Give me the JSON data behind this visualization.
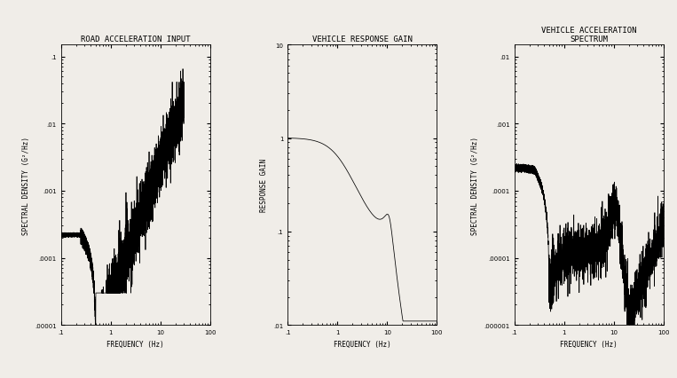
{
  "plot1_title": "ROAD ACCELERATION INPUT",
  "plot2_title": "VEHICLE RESPONSE GAIN",
  "plot3_title": "VEHICLE ACCELERATION\nSPECTRUM",
  "plot1_xlabel": "FREQUENCY (Hz)",
  "plot2_xlabel": "FREQUENCY (Hz)",
  "plot3_xlabel": "FREQUENCY (Hz)",
  "plot1_ylabel": "SPECTRAL DENSITY (G²/Hz)",
  "plot2_ylabel": "RESPONSE GAIN",
  "plot3_ylabel": "SPECTRAL DENSITY (G²/Hz)",
  "plot1_ylim": [
    1e-05,
    0.15
  ],
  "plot2_ylim": [
    0.01,
    10.0
  ],
  "plot3_ylim": [
    1e-06,
    0.015
  ],
  "xlim": [
    0.1,
    100
  ],
  "background_color": "#f0ede8",
  "line_color": "#000000",
  "title_fontsize": 6.5,
  "label_fontsize": 5.5,
  "tick_fontsize": 5.0
}
